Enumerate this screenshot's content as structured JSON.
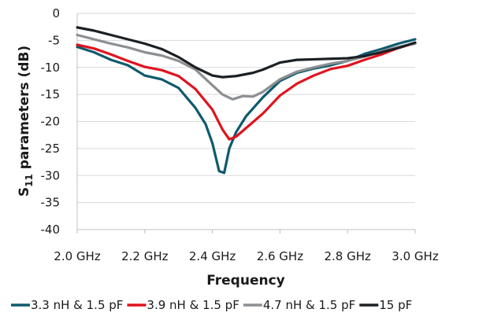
{
  "chart_data": {
    "type": "line",
    "xlabel": "Frequency",
    "ylabel_main": "S",
    "ylabel_sub": "11",
    "ylabel_rest": " parameters (dB)",
    "xlim": [
      2.0,
      3.0
    ],
    "ylim": [
      -40,
      0
    ],
    "x_ticks": [
      2.0,
      2.2,
      2.4,
      2.6,
      2.8,
      3.0
    ],
    "x_tick_labels": [
      "2.0 GHz",
      "2.2 GHz",
      "2.4 GHz",
      "2.6 GHz",
      "2.8 GHz",
      "3.0 GHz"
    ],
    "y_ticks": [
      0,
      -5,
      -10,
      -15,
      -20,
      -25,
      -30,
      -35,
      -40
    ],
    "y_tick_labels": [
      "0",
      "-5",
      "-10",
      "-15",
      "-20",
      "-25",
      "-30",
      "-35",
      "-40"
    ],
    "grid": "horizontal",
    "legend_position": "bottom",
    "series": [
      {
        "name": "3.3 nH & 1.5 pF",
        "color": "#0e5a6e",
        "points": [
          [
            2.0,
            -6.2
          ],
          [
            2.05,
            -7.2
          ],
          [
            2.1,
            -8.6
          ],
          [
            2.15,
            -9.6
          ],
          [
            2.2,
            -11.5
          ],
          [
            2.25,
            -12.2
          ],
          [
            2.3,
            -13.8
          ],
          [
            2.35,
            -17.5
          ],
          [
            2.38,
            -20.5
          ],
          [
            2.4,
            -24.0
          ],
          [
            2.42,
            -29.2
          ],
          [
            2.435,
            -29.5
          ],
          [
            2.45,
            -25.0
          ],
          [
            2.47,
            -22.0
          ],
          [
            2.5,
            -19.0
          ],
          [
            2.55,
            -15.5
          ],
          [
            2.6,
            -12.5
          ],
          [
            2.65,
            -11.0
          ],
          [
            2.7,
            -10.2
          ],
          [
            2.75,
            -9.6
          ],
          [
            2.8,
            -8.8
          ],
          [
            2.85,
            -7.5
          ],
          [
            2.9,
            -6.6
          ],
          [
            2.95,
            -5.6
          ],
          [
            3.0,
            -4.8
          ]
        ]
      },
      {
        "name": "3.9 nH & 1.5 pF",
        "color": "#e0141e",
        "points": [
          [
            2.0,
            -5.8
          ],
          [
            2.05,
            -6.5
          ],
          [
            2.1,
            -7.6
          ],
          [
            2.15,
            -8.8
          ],
          [
            2.2,
            -9.9
          ],
          [
            2.25,
            -10.5
          ],
          [
            2.3,
            -11.6
          ],
          [
            2.35,
            -14.0
          ],
          [
            2.4,
            -17.8
          ],
          [
            2.43,
            -21.5
          ],
          [
            2.45,
            -23.3
          ],
          [
            2.47,
            -22.8
          ],
          [
            2.5,
            -21.2
          ],
          [
            2.55,
            -18.5
          ],
          [
            2.6,
            -15.2
          ],
          [
            2.65,
            -13.0
          ],
          [
            2.7,
            -11.5
          ],
          [
            2.75,
            -10.3
          ],
          [
            2.8,
            -9.7
          ],
          [
            2.85,
            -8.6
          ],
          [
            2.9,
            -7.6
          ],
          [
            2.95,
            -6.4
          ],
          [
            3.0,
            -5.5
          ]
        ]
      },
      {
        "name": "4.7 nH & 1.5 pF",
        "color": "#8c8f92",
        "points": [
          [
            2.0,
            -4.0
          ],
          [
            2.05,
            -4.8
          ],
          [
            2.1,
            -5.6
          ],
          [
            2.15,
            -6.3
          ],
          [
            2.2,
            -7.2
          ],
          [
            2.25,
            -7.8
          ],
          [
            2.3,
            -8.8
          ],
          [
            2.35,
            -10.4
          ],
          [
            2.4,
            -13.3
          ],
          [
            2.43,
            -15.0
          ],
          [
            2.46,
            -15.9
          ],
          [
            2.49,
            -15.3
          ],
          [
            2.52,
            -15.4
          ],
          [
            2.55,
            -14.5
          ],
          [
            2.6,
            -12.2
          ],
          [
            2.65,
            -10.8
          ],
          [
            2.7,
            -10.0
          ],
          [
            2.75,
            -9.3
          ],
          [
            2.8,
            -8.8
          ],
          [
            2.85,
            -8.0
          ],
          [
            2.9,
            -7.0
          ],
          [
            2.95,
            -6.2
          ],
          [
            3.0,
            -5.6
          ]
        ]
      },
      {
        "name": "15 pF",
        "color": "#1b2024",
        "points": [
          [
            2.0,
            -2.6
          ],
          [
            2.05,
            -3.2
          ],
          [
            2.1,
            -4.0
          ],
          [
            2.15,
            -4.8
          ],
          [
            2.2,
            -5.6
          ],
          [
            2.25,
            -6.6
          ],
          [
            2.3,
            -8.1
          ],
          [
            2.35,
            -10.0
          ],
          [
            2.4,
            -11.5
          ],
          [
            2.43,
            -11.8
          ],
          [
            2.47,
            -11.6
          ],
          [
            2.52,
            -11.0
          ],
          [
            2.55,
            -10.4
          ],
          [
            2.6,
            -9.1
          ],
          [
            2.65,
            -8.6
          ],
          [
            2.7,
            -8.5
          ],
          [
            2.75,
            -8.4
          ],
          [
            2.8,
            -8.3
          ],
          [
            2.85,
            -7.9
          ],
          [
            2.9,
            -7.2
          ],
          [
            2.95,
            -6.4
          ],
          [
            3.0,
            -5.4
          ]
        ]
      }
    ]
  }
}
